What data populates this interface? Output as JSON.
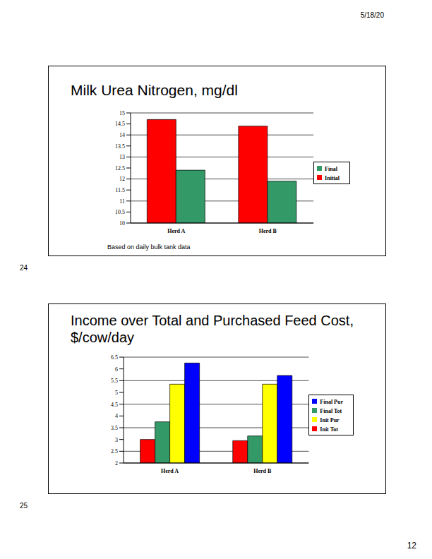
{
  "page": {
    "date": "5/18/20",
    "number": "12",
    "slide_numbers": [
      "24",
      "25"
    ]
  },
  "chart_data": [
    {
      "type": "bar",
      "title": "Milk Urea Nitrogen, mg/dl",
      "annotations": [
        "Based on daily bulk tank data"
      ],
      "categories": [
        "Herd A",
        "Herd B"
      ],
      "series": [
        {
          "name": "Initial",
          "color": "#ff0000",
          "values": [
            14.7,
            14.4
          ]
        },
        {
          "name": "Final",
          "color": "#339966",
          "values": [
            12.4,
            11.9
          ]
        }
      ],
      "ylim": [
        10,
        15
      ],
      "yticks": [
        10,
        10.5,
        11,
        11.5,
        12,
        12.5,
        13,
        13.5,
        14,
        14.5,
        15
      ],
      "grid": true,
      "legend": "right"
    },
    {
      "type": "bar",
      "title": "Income over Total and Purchased Feed Cost, $/cow/day",
      "categories": [
        "Herd A",
        "Herd B"
      ],
      "series": [
        {
          "name": "Init Tot",
          "color": "#ff0000",
          "values": [
            3.0,
            2.95
          ]
        },
        {
          "name": "Final Tot",
          "color": "#339966",
          "values": [
            3.75,
            3.15
          ]
        },
        {
          "name": "Init Pur",
          "color": "#ffff00",
          "values": [
            5.35,
            5.35
          ]
        },
        {
          "name": "Final Pur",
          "color": "#0000ff",
          "values": [
            6.25,
            5.72
          ]
        }
      ],
      "ylim": [
        2,
        6.5
      ],
      "yticks": [
        2,
        2.5,
        3,
        3.5,
        4,
        4.5,
        5,
        5.5,
        6,
        6.5
      ],
      "grid": true,
      "legend": "right"
    }
  ]
}
